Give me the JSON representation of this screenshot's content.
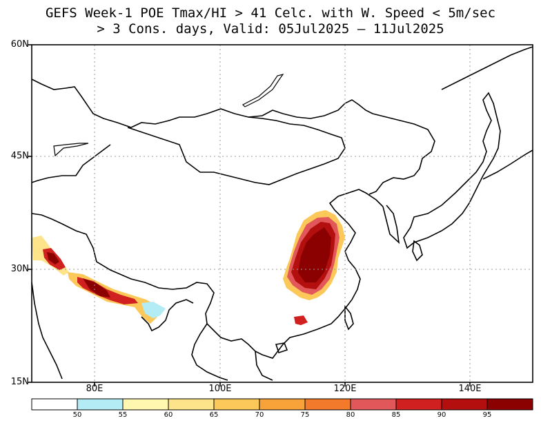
{
  "title": {
    "line1": "GEFS Week-1 POE Tmax/HI > 41 Celc. with W. Speed < 5m/sec",
    "line2": "> 3 Cons. days, Valid: 05Jul2025 – 11Jul2025"
  },
  "map": {
    "lat_labels": [
      "60N",
      "45N",
      "30N",
      "15N"
    ],
    "lon_labels": [
      "80E",
      "100E",
      "120E",
      "140E"
    ],
    "gridlines": "dotted"
  },
  "colorbar": {
    "labels": [
      "50",
      "55",
      "60",
      "65",
      "70",
      "75",
      "80",
      "85",
      "90",
      "95"
    ],
    "colors": [
      "#ffffff",
      "#b3ecf4",
      "#fff7b0",
      "#fde38a",
      "#fcc85a",
      "#f8a33a",
      "#f27a2a",
      "#e2575a",
      "#d02020",
      "#b30f0f",
      "#8b0000"
    ]
  },
  "colors": {
    "high": "#b00000",
    "mid": "#e06060",
    "low": "#f8a33a",
    "fringe": "#fde38a",
    "edge": "#b3ecf4"
  }
}
